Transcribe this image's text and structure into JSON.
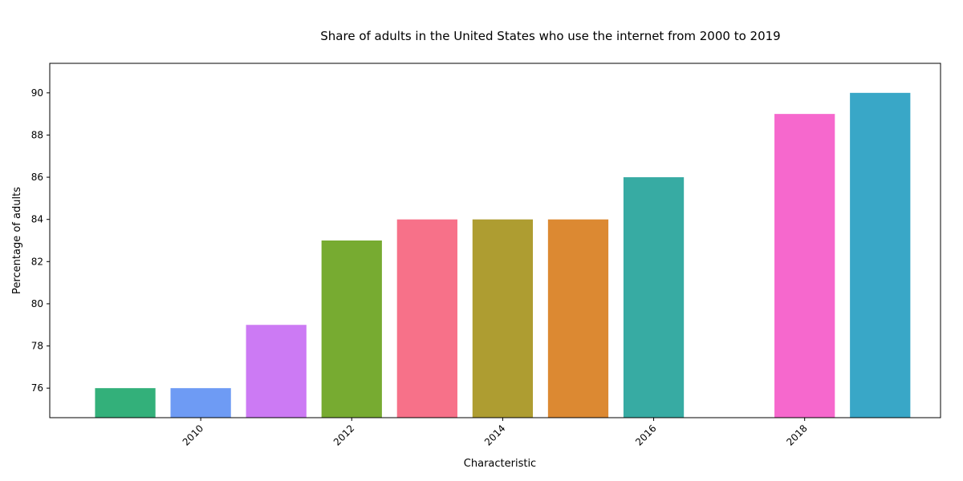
{
  "chart_data": {
    "type": "bar",
    "title": "Share of adults in the United States who use the internet from 2000 to 2019",
    "xlabel": "Characteristic",
    "ylabel": "Percentage of adults",
    "x": [
      2009,
      2010,
      2011,
      2012,
      2013,
      2014,
      2015,
      2016,
      2018,
      2019
    ],
    "values": [
      76,
      76,
      79,
      83,
      84,
      84,
      84,
      86,
      89,
      90
    ],
    "colors": [
      "#33b07a",
      "#6e9bf4",
      "#cc7af4",
      "#77ab31",
      "#f77189",
      "#ae9d31",
      "#dc8932",
      "#37aba3",
      "#f668cd",
      "#39a7c7"
    ],
    "xlim": [
      2008.0,
      2019.8
    ],
    "ylim": [
      74.6,
      91.4
    ],
    "xticks": [
      "2010",
      "2012",
      "2014",
      "2016",
      "2018"
    ],
    "yticks": [
      "76",
      "78",
      "80",
      "82",
      "84",
      "86",
      "88",
      "90"
    ],
    "grid": false,
    "legend": "none"
  }
}
